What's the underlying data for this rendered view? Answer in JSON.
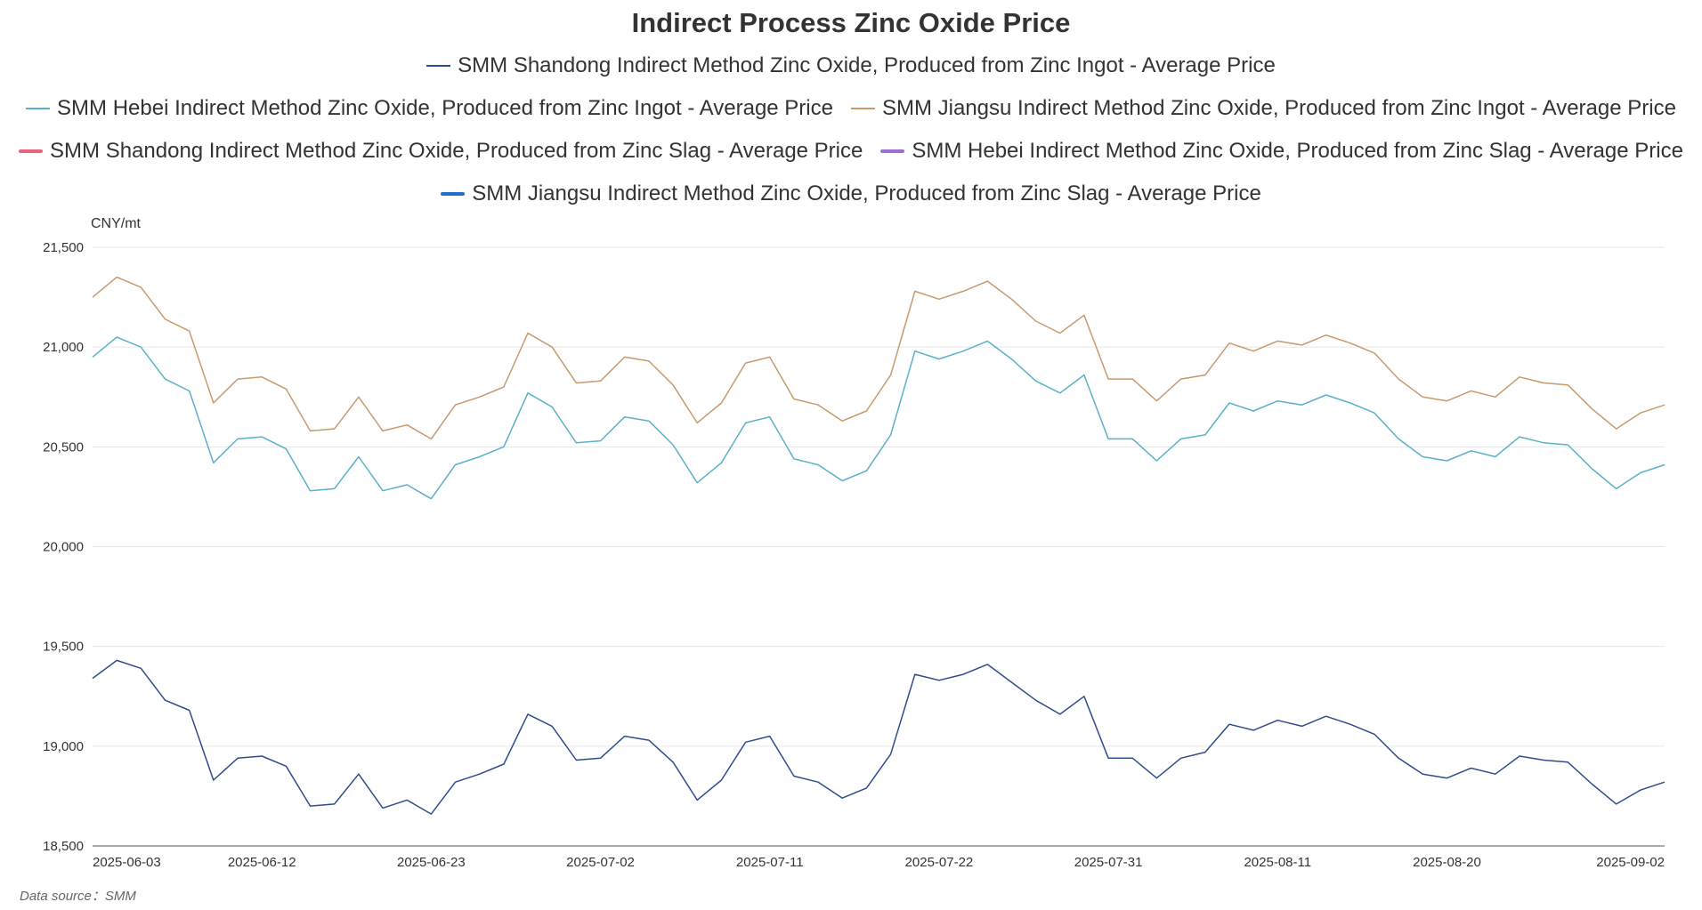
{
  "chart_data": {
    "type": "line",
    "title": "Indirect Process Zinc Oxide Price",
    "ylabel": "CNY/mt",
    "ylim": [
      18500,
      21500
    ],
    "yticks": [
      "18,500",
      "19,000",
      "19,500",
      "20,000",
      "20,500",
      "21,000",
      "21,500"
    ],
    "ytick_values": [
      18500,
      19000,
      19500,
      20000,
      20500,
      21000,
      21500
    ],
    "x_tick_labels": [
      "2025-06-03",
      "2025-06-12",
      "2025-06-23",
      "2025-07-02",
      "2025-07-11",
      "2025-07-22",
      "2025-07-31",
      "2025-08-11",
      "2025-08-20",
      "2025-09-02"
    ],
    "x_tick_indices": [
      0,
      7,
      14,
      21,
      28,
      35,
      42,
      49,
      56,
      65
    ],
    "legend_placement": "top-center",
    "grid": true,
    "series": [
      {
        "name": "SMM Shandong Indirect Method Zinc Oxide, Produced from Zinc Ingot - Average Price",
        "color": "#2f4c8c",
        "values": [
          19340,
          19430,
          19390,
          19230,
          19180,
          18830,
          18940,
          18950,
          18900,
          18700,
          18710,
          18860,
          18690,
          18730,
          18660,
          18820,
          18860,
          18910,
          19160,
          19100,
          18930,
          18940,
          19050,
          19030,
          18920,
          18730,
          18830,
          19020,
          19050,
          18850,
          18820,
          18740,
          18790,
          18960,
          19360,
          19330,
          19360,
          19410,
          19320,
          19230,
          19160,
          19250,
          18940,
          18940,
          18840,
          18940,
          18970,
          19110,
          19080,
          19130,
          19100,
          19150,
          19110,
          19060,
          18940,
          18860,
          18840,
          18890,
          18860,
          18950,
          18930,
          18920,
          18810,
          18710,
          18780,
          18820
        ]
      },
      {
        "name": "SMM Hebei Indirect Method Zinc Oxide, Produced from Zinc Ingot - Average Price",
        "color": "#5ab1c9",
        "values": [
          20950,
          21050,
          21000,
          20840,
          20780,
          20420,
          20540,
          20550,
          20490,
          20280,
          20290,
          20450,
          20280,
          20310,
          20240,
          20410,
          20450,
          20500,
          20770,
          20700,
          20520,
          20530,
          20650,
          20630,
          20510,
          20320,
          20420,
          20620,
          20650,
          20440,
          20410,
          20330,
          20380,
          20560,
          20980,
          20940,
          20980,
          21030,
          20940,
          20830,
          20770,
          20860,
          20540,
          20540,
          20430,
          20540,
          20560,
          20720,
          20680,
          20730,
          20710,
          20760,
          20720,
          20670,
          20540,
          20450,
          20430,
          20480,
          20450,
          20550,
          20520,
          20510,
          20390,
          20290,
          20370,
          20410
        ]
      },
      {
        "name": "SMM Jiangsu Indirect Method Zinc Oxide, Produced from Zinc Ingot - Average Price",
        "color": "#c79a6e",
        "values": [
          21250,
          21350,
          21300,
          21140,
          21080,
          20720,
          20840,
          20850,
          20790,
          20580,
          20590,
          20750,
          20580,
          20610,
          20540,
          20710,
          20750,
          20800,
          21070,
          21000,
          20820,
          20830,
          20950,
          20930,
          20810,
          20620,
          20720,
          20920,
          20950,
          20740,
          20710,
          20630,
          20680,
          20860,
          21280,
          21240,
          21280,
          21330,
          21240,
          21130,
          21070,
          21160,
          20840,
          20840,
          20730,
          20840,
          20860,
          21020,
          20980,
          21030,
          21010,
          21060,
          21020,
          20970,
          20840,
          20750,
          20730,
          20780,
          20750,
          20850,
          20820,
          20810,
          20690,
          20590,
          20670,
          20710
        ]
      },
      {
        "name": "SMM Shandong Indirect Method Zinc Oxide, Produced from Zinc Slag - Average Price",
        "color": "#e8647a",
        "values": []
      },
      {
        "name": "SMM Hebei Indirect Method Zinc Oxide, Produced from Zinc Slag - Average Price",
        "color": "#9d6fd6",
        "values": []
      },
      {
        "name": "SMM Jiangsu Indirect Method Zinc Oxide, Produced from Zinc Slag - Average Price",
        "color": "#1f6fd1",
        "values": []
      }
    ]
  },
  "source_note": "Data source：SMM"
}
